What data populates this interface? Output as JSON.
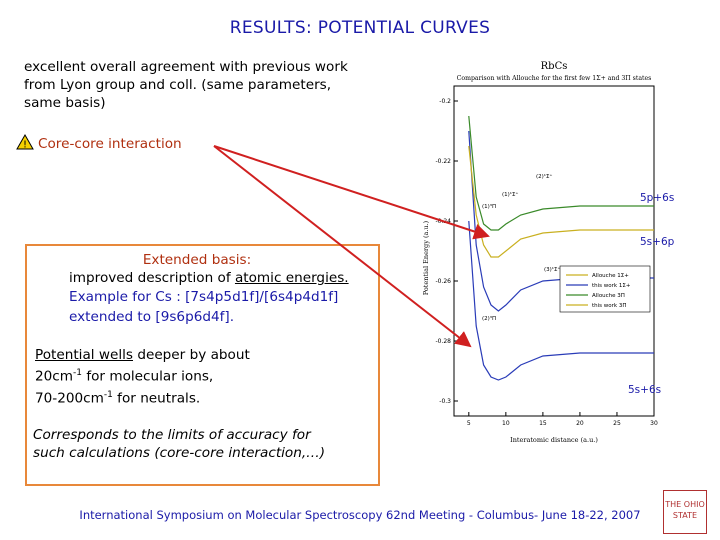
{
  "slide": {
    "title": "RESULTS: POTENTIAL CURVES",
    "intro_line1": "excellent overall agreement with previous work",
    "intro_line2": "from Lyon group and coll. (same parameters,",
    "intro_line3": "same basis)",
    "warning_label": "Core-core interaction",
    "extended_title": "Extended basis:",
    "ext_l1_prefix": "improved description of ",
    "ext_l1_underlined": "atomic energies.",
    "ext_l2": "Example for Cs : [7s4p5d1f]/[6s4p4d1f]",
    "ext_l3": "extended to [9s6p6d4f].",
    "wells_underlined": "Potential wells",
    "wells_rest1": " deeper by about",
    "wells_l2": "20cm",
    "wells_l2_sup": "-1",
    "wells_l2_rest": " for molecular ions,",
    "wells_l3": "70-200cm",
    "wells_l3_sup": "-1",
    "wells_l3_rest": " for neutrals.",
    "corresp_l1": "Corresponds to the limits of accuracy for",
    "corresp_l2": "such calculations (core-core interaction,…)",
    "footer": "International Symposium on Molecular Spectroscopy 62nd Meeting - Columbus- June 18-22, 2007",
    "logo_text": "THE OHIO STATE"
  },
  "annotations": {
    "asym1": "5p+6s",
    "asym2": "5s+6p",
    "asym3": "5s+6s"
  },
  "chart_data": {
    "type": "line",
    "title": "RbCs",
    "subtitle": "Comparison with Allouche for the first few 1Σ+ and 3Π states",
    "xlabel": "Interatomic distance (a.u.)",
    "ylabel": "Potential Energy (a.u.)",
    "xlim": [
      3,
      30
    ],
    "ylim": [
      -0.305,
      -0.195
    ],
    "xticks": [
      "5",
      "10",
      "15",
      "20",
      "25",
      "30"
    ],
    "yticks": [
      "-0.2",
      "-0.22",
      "-0.24",
      "-0.26",
      "-0.28",
      "-0.3"
    ],
    "legend": [
      "Allouche 1Σ+",
      "this work 1Σ+",
      "Allouche 3Π",
      "this work 3Π"
    ],
    "state_labels": [
      "(1)¹Σ⁺",
      "(2)¹Σ⁺",
      "(3)¹Σ⁺",
      "(1)³Π",
      "(2)³Π"
    ],
    "colors": {
      "blue": "#2a3cb8",
      "green": "#3a8a2a",
      "olive": "#c9b020",
      "red": "#d02020"
    },
    "series": [
      {
        "name": "this work 1Σ+",
        "x": [
          5,
          6,
          7,
          8,
          9,
          10,
          12,
          15,
          20,
          25,
          30
        ],
        "y": [
          -0.24,
          -0.275,
          -0.288,
          -0.292,
          -0.293,
          -0.292,
          -0.288,
          -0.285,
          -0.284,
          -0.284,
          -0.284
        ]
      },
      {
        "name": "this work 3Π",
        "x": [
          5,
          6,
          7,
          8,
          9,
          10,
          12,
          15,
          20,
          25,
          30
        ],
        "y": [
          -0.21,
          -0.248,
          -0.262,
          -0.268,
          -0.27,
          -0.268,
          -0.263,
          -0.26,
          -0.259,
          -0.259,
          -0.259
        ]
      },
      {
        "name": "Allouche 1Σ+",
        "x": [
          5,
          6,
          7,
          8,
          9,
          10,
          12,
          15,
          20,
          25,
          30
        ],
        "y": [
          -0.215,
          -0.238,
          -0.248,
          -0.252,
          -0.252,
          -0.25,
          -0.246,
          -0.244,
          -0.243,
          -0.243,
          -0.243
        ]
      },
      {
        "name": "Allouche 3Π",
        "x": [
          5,
          6,
          7,
          8,
          9,
          10,
          12,
          15,
          20,
          25,
          30
        ],
        "y": [
          -0.205,
          -0.232,
          -0.241,
          -0.243,
          -0.243,
          -0.241,
          -0.238,
          -0.236,
          -0.235,
          -0.235,
          -0.235
        ]
      }
    ]
  }
}
